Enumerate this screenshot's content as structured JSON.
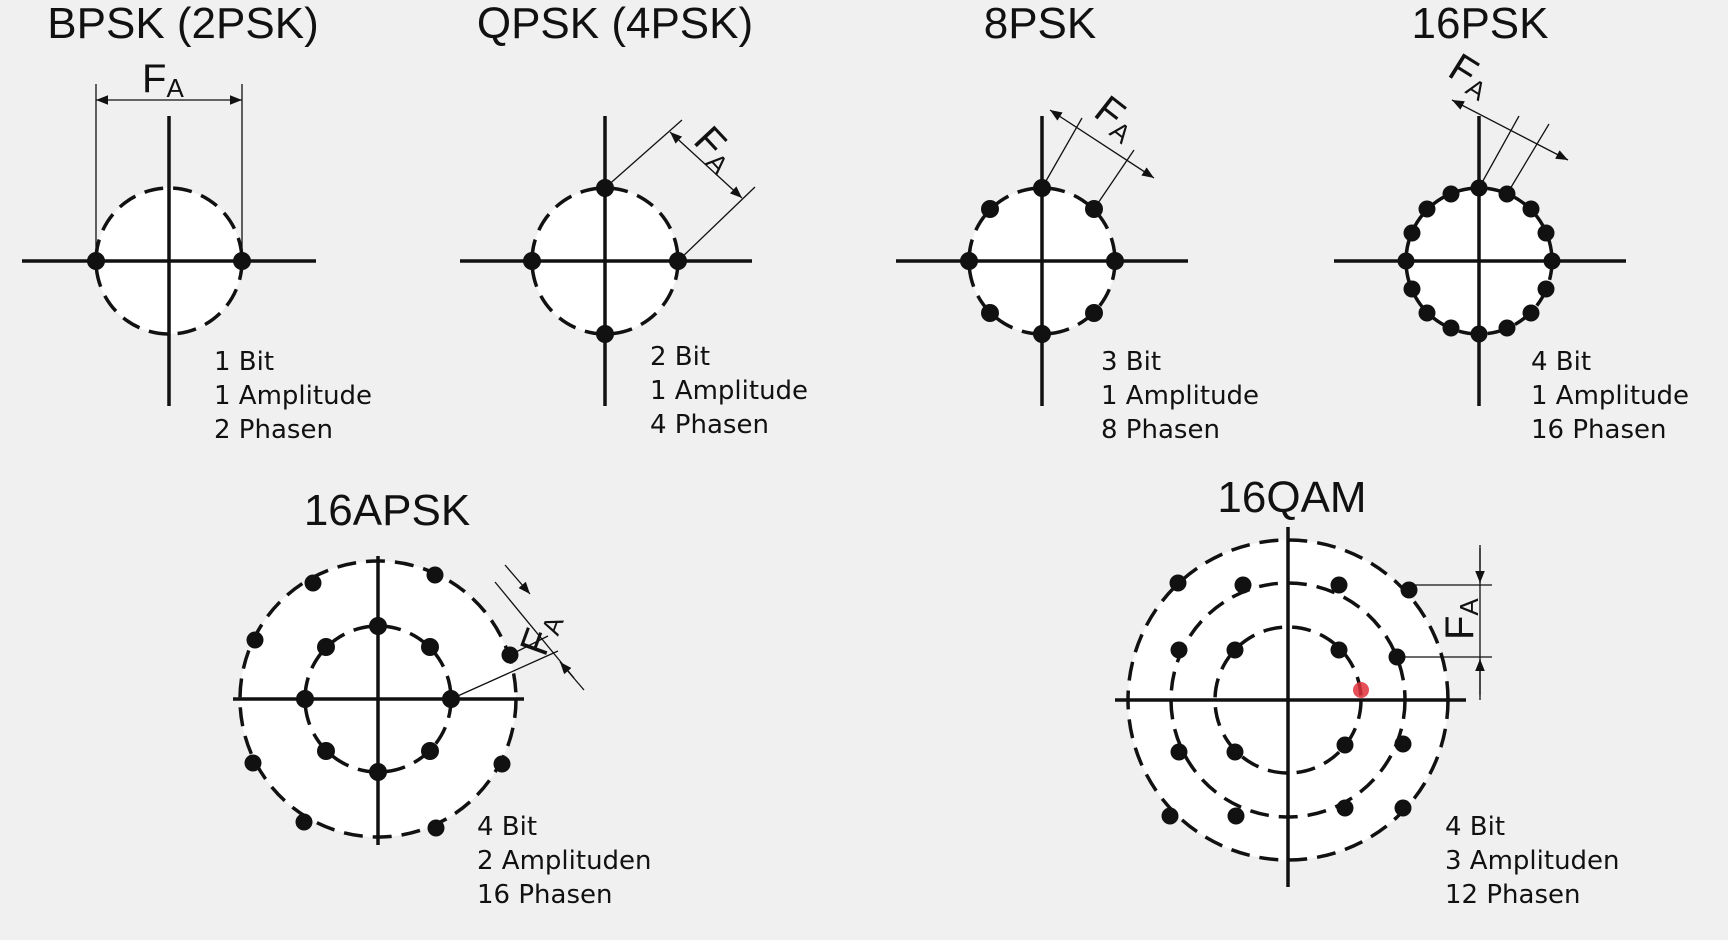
{
  "symbol": "F",
  "symbol_sub": "A",
  "panels": {
    "bpsk": {
      "title": "BPSK (2PSK)",
      "info": [
        "1 Bit",
        "1 Amplitude",
        "2 Phasen"
      ]
    },
    "qpsk": {
      "title": "QPSK (4PSK)",
      "info": [
        "2 Bit",
        "1 Amplitude",
        "4 Phasen"
      ]
    },
    "psk8": {
      "title": "8PSK",
      "info": [
        "3 Bit",
        "1 Amplitude",
        "8 Phasen"
      ]
    },
    "psk16": {
      "title": "16PSK",
      "info": [
        "4 Bit",
        "1 Amplitude",
        "16 Phasen"
      ]
    },
    "apsk16": {
      "title": "16APSK",
      "info": [
        "4 Bit",
        "2 Amplituden",
        "16 Phasen"
      ]
    },
    "qam16": {
      "title": "16QAM",
      "info": [
        "4 Bit",
        "3 Amplituden",
        "12 Phasen"
      ]
    }
  },
  "colors": {
    "background": "#f0f0f0",
    "ink": "#111111",
    "disk": "#ffffff",
    "cursor": "#e0303a"
  }
}
